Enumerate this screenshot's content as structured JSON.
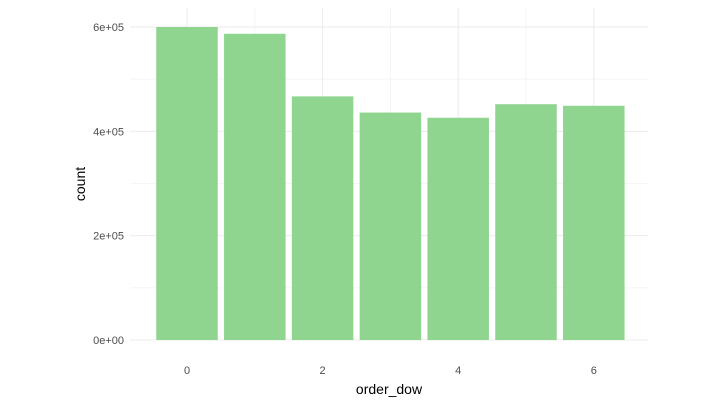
{
  "chart_data": {
    "type": "bar",
    "title": "",
    "xlabel": "order_dow",
    "ylabel": "count",
    "categories": [
      0,
      1,
      2,
      3,
      4,
      5,
      6
    ],
    "values": [
      600000,
      587000,
      467000,
      436000,
      426000,
      452000,
      449000
    ],
    "x_ticks": [
      0,
      2,
      4,
      6
    ],
    "x_tick_labels": [
      "0",
      "2",
      "4",
      "6"
    ],
    "y_ticks": [
      0,
      200000,
      400000,
      600000
    ],
    "y_tick_labels": [
      "0e+00",
      "2e+05",
      "4e+05",
      "6e+05"
    ],
    "ylim": [
      0,
      600000
    ],
    "grid": true,
    "legend": "none",
    "bar_color": "#8fd48f"
  }
}
